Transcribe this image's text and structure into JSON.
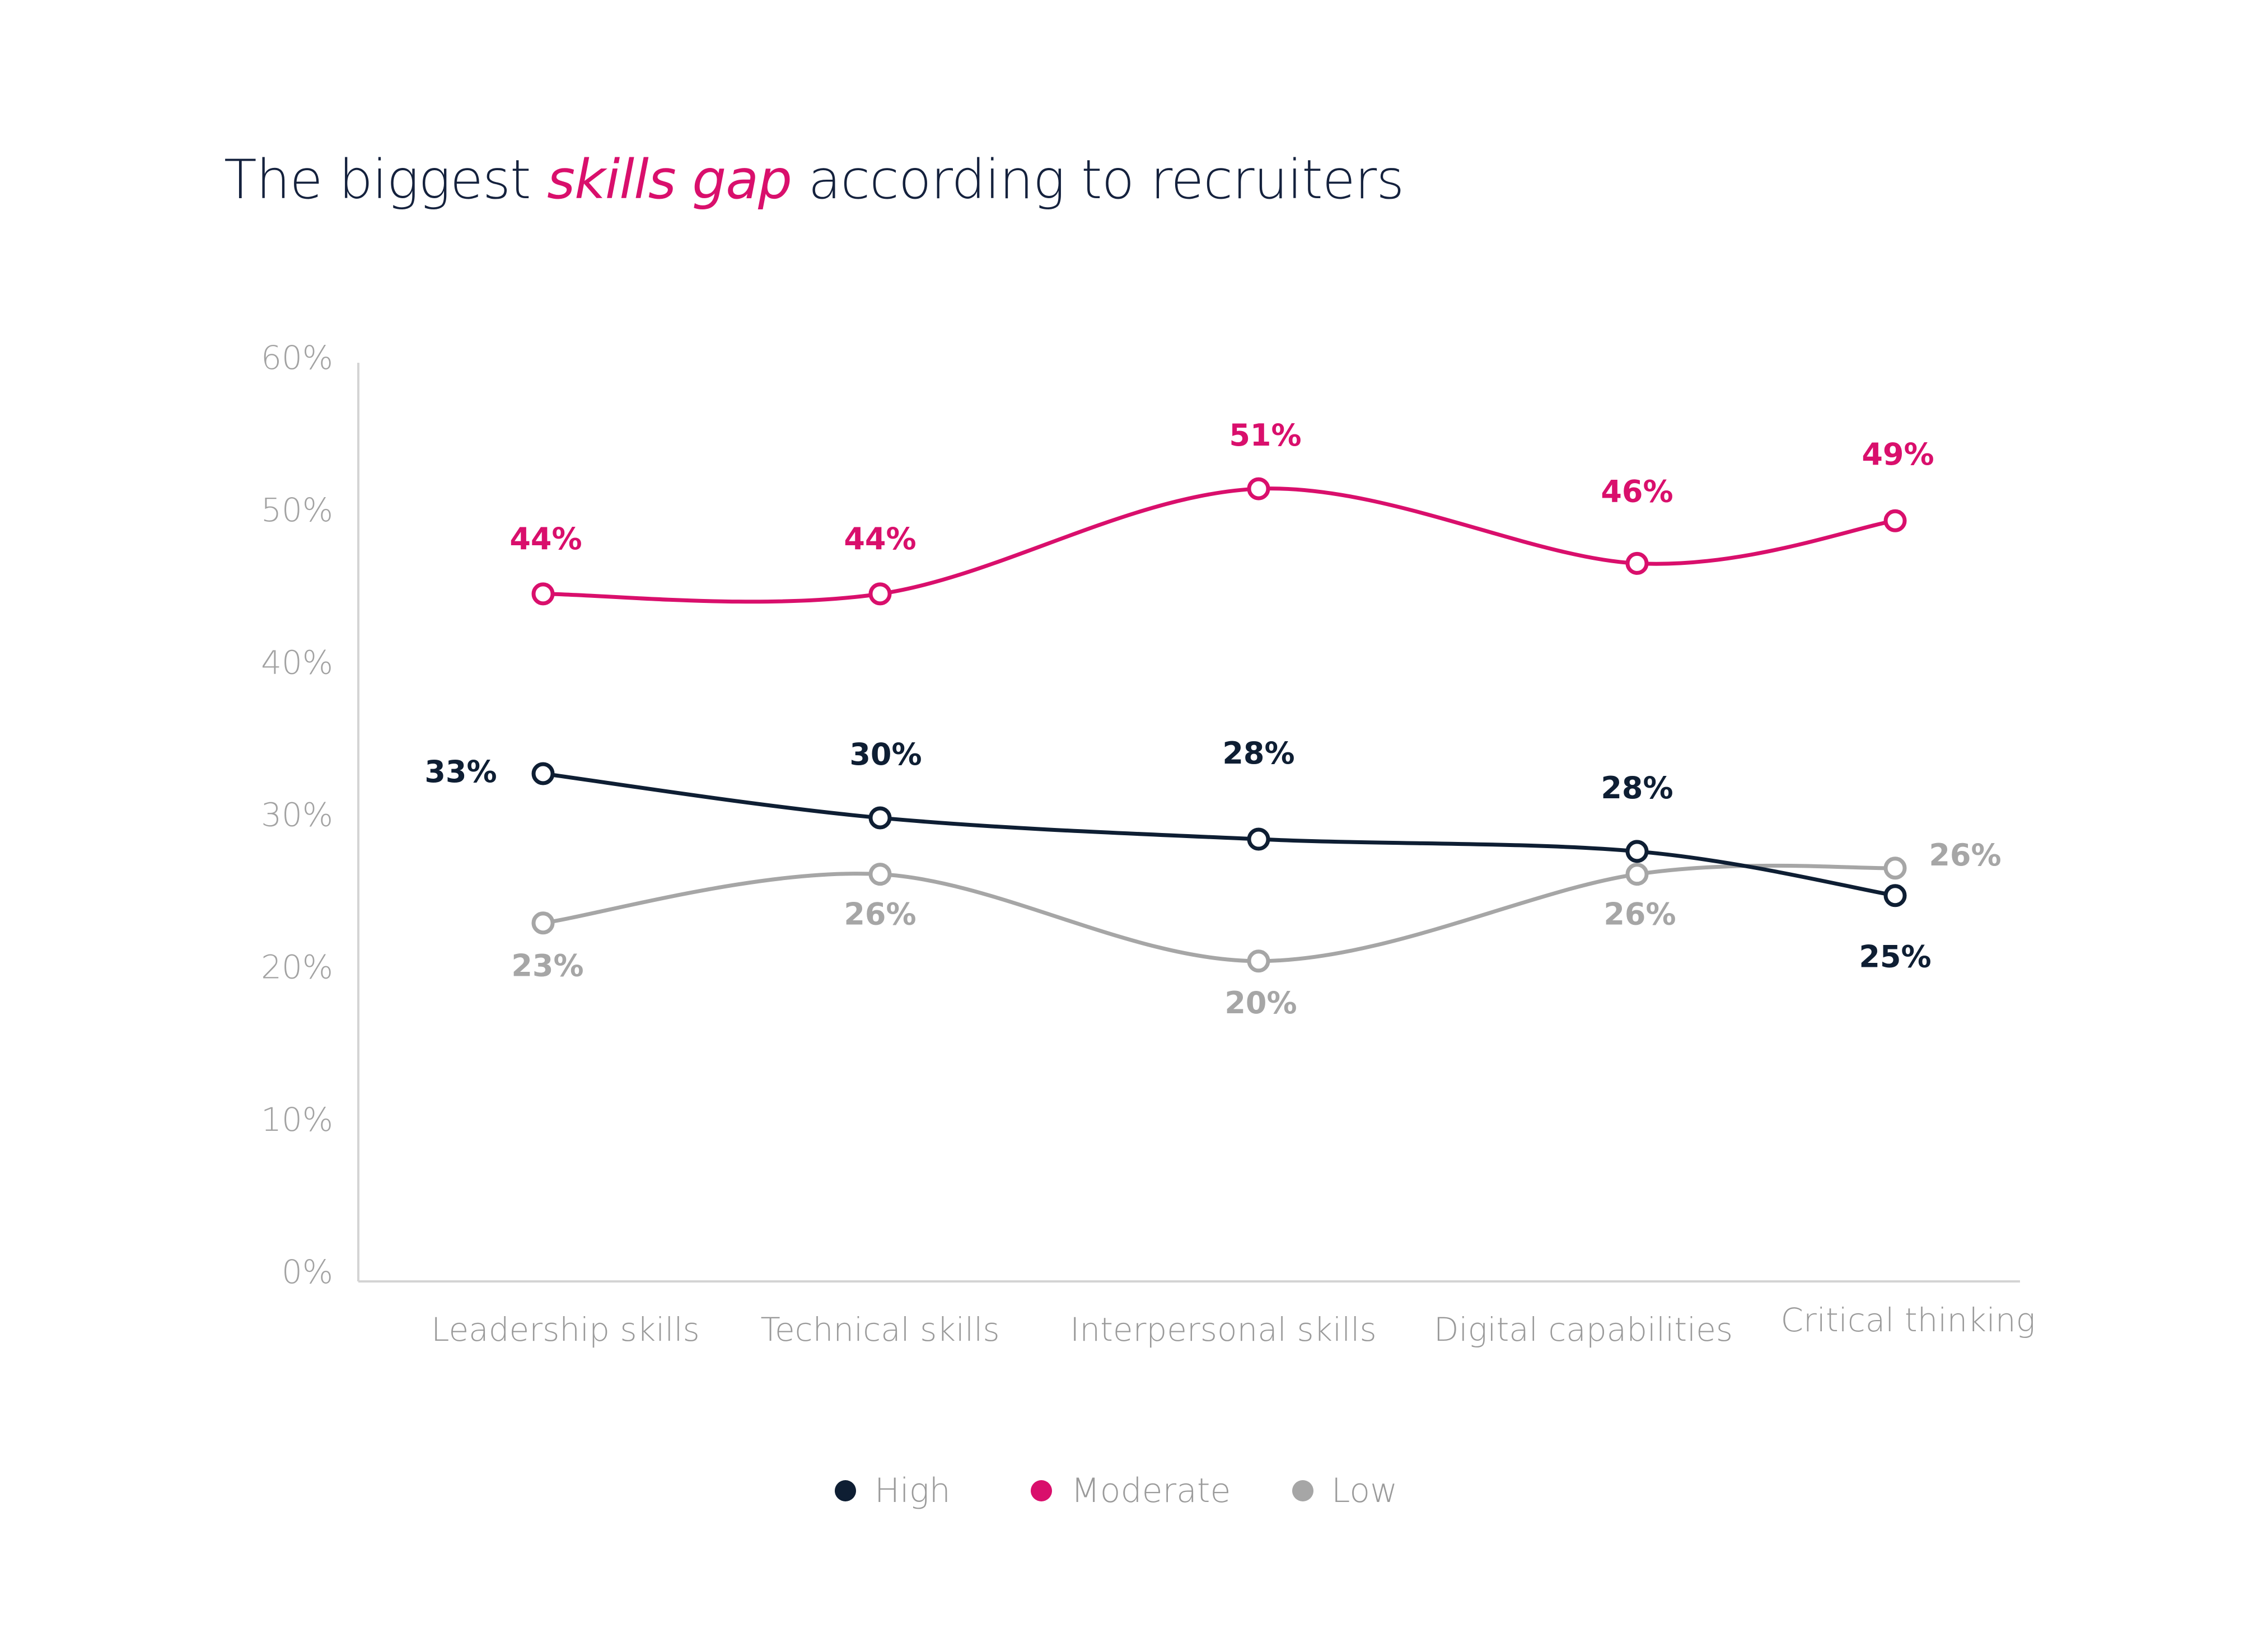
{
  "title": {
    "prefix": "The biggest ",
    "highlight": "skills gap",
    "suffix": " according to recruiters"
  },
  "colors": {
    "High": "#0e1e33",
    "Moderate": "#d90f6c",
    "Low": "#a6a6a6",
    "axis": "#d4d4d4",
    "tick": "#a2a2a2"
  },
  "chart_data": {
    "type": "line",
    "title": "The biggest skills gap according to recruiters",
    "xlabel": "",
    "ylabel": "",
    "categories": [
      "Leadership skills",
      "Technical skills",
      "Interpersonal skills",
      "Digital capabilities",
      "Critical thinking"
    ],
    "ylim": [
      0,
      60
    ],
    "yticks": [
      "0%",
      "10%",
      "20%",
      "30%",
      "40%",
      "50%",
      "60%"
    ],
    "grid": false,
    "legend_position": "bottom-center",
    "series": [
      {
        "name": "High",
        "values": [
          32.7,
          29.8,
          28.4,
          27.6,
          24.7
        ],
        "labels": [
          "33%",
          "30%",
          "28%",
          "28%",
          "25%"
        ]
      },
      {
        "name": "Moderate",
        "values": [
          44.5,
          44.5,
          51.4,
          46.5,
          49.3
        ],
        "labels": [
          "44%",
          "44%",
          "51%",
          "46%",
          "49%"
        ]
      },
      {
        "name": "Low",
        "values": [
          22.9,
          26.1,
          20.4,
          26.1,
          26.5
        ],
        "labels": [
          "23%",
          "26%",
          "20%",
          "26%",
          "26%"
        ]
      }
    ]
  }
}
